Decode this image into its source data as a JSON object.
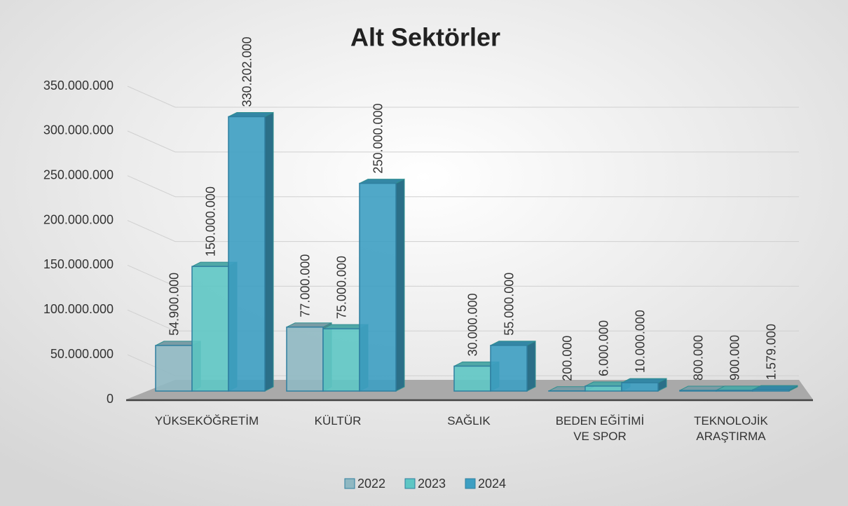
{
  "chart_data": {
    "type": "bar3d",
    "title": "Alt Sektörler",
    "categories": [
      "YÜKSEKÖĞRETİM",
      "KÜLTÜR",
      "SAĞLIK",
      "BEDEN EĞİTİMİ VE SPOR",
      "TEKNOLOJİK ARAŞTIRMA"
    ],
    "series": [
      {
        "name": "2022",
        "color": "#8fb8c2",
        "values": [
          54900000,
          77000000,
          null,
          200000,
          800000
        ],
        "value_labels": [
          "54.900.000",
          "77.000.000",
          null,
          "200.000",
          "800.000"
        ]
      },
      {
        "name": "2023",
        "color": "#5ec6c4",
        "values": [
          150000000,
          75000000,
          30000000,
          6000000,
          900000
        ],
        "value_labels": [
          "150.000.000",
          "75.000.000",
          "30.000.000",
          "6.000.000",
          "900.000"
        ]
      },
      {
        "name": "2024",
        "color": "#3d9fc2",
        "values": [
          330202000,
          250000000,
          55000000,
          10000000,
          1579000
        ],
        "value_labels": [
          "330.202.000",
          "250.000.000",
          "55.000.000",
          "10.000.000",
          "1.579.000"
        ]
      }
    ],
    "ylim": [
      0,
      350000000
    ],
    "yticks": [
      0,
      {
        "value": 50000000,
        "label": "50.000.000"
      },
      {
        "value": 100000000,
        "label": "100.000.000"
      },
      {
        "value": 150000000,
        "label": "150.000.000"
      },
      {
        "value": 200000000,
        "label": "200.000.000"
      },
      {
        "value": 250000000,
        "label": "250.000.000"
      },
      {
        "value": 300000000,
        "label": "300.000.000"
      },
      {
        "value": 350000000,
        "label": "350.000.000"
      }
    ],
    "grid": true,
    "legend": "bottom"
  }
}
